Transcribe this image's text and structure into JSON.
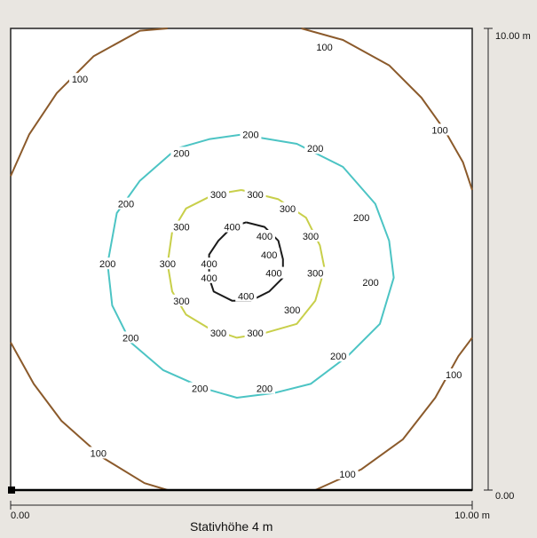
{
  "caption": "Stativhöhe 4 m",
  "axes": {
    "x_min_label": "0.00",
    "x_max_label": "10.00 m",
    "y_min_label": "0.00",
    "y_max_label": "10.00 m"
  },
  "contours": [
    {
      "level": "100",
      "color": "#8b5a2b",
      "segments": [
        [
          [
            0.0,
            6.8
          ],
          [
            0.4,
            7.7
          ],
          [
            1.0,
            8.6
          ],
          [
            1.8,
            9.4
          ],
          [
            2.8,
            9.95
          ],
          [
            3.4,
            10.0
          ]
        ],
        [
          [
            6.3,
            10.0
          ],
          [
            7.2,
            9.75
          ],
          [
            8.2,
            9.2
          ],
          [
            8.9,
            8.5
          ],
          [
            9.4,
            7.8
          ],
          [
            9.8,
            7.1
          ],
          [
            10.0,
            6.5
          ]
        ],
        [
          [
            0.0,
            3.2
          ],
          [
            0.5,
            2.3
          ],
          [
            1.1,
            1.5
          ],
          [
            2.0,
            0.7
          ],
          [
            2.9,
            0.15
          ],
          [
            3.4,
            0.0
          ]
        ],
        [
          [
            6.6,
            0.0
          ],
          [
            7.6,
            0.45
          ],
          [
            8.5,
            1.1
          ],
          [
            9.2,
            2.0
          ],
          [
            9.7,
            2.9
          ],
          [
            10.0,
            3.3
          ]
        ]
      ],
      "labels": [
        [
          1.5,
          8.9
        ],
        [
          9.3,
          7.8
        ],
        [
          1.9,
          0.8
        ],
        [
          7.3,
          0.35
        ],
        [
          9.6,
          2.5
        ],
        [
          6.8,
          9.6
        ]
      ]
    },
    {
      "level": "200",
      "color": "#4cc4c4",
      "points": [
        [
          5.0,
          7.7
        ],
        [
          6.2,
          7.5
        ],
        [
          7.2,
          7.0
        ],
        [
          7.9,
          6.2
        ],
        [
          8.2,
          5.4
        ],
        [
          8.3,
          4.6
        ],
        [
          8.0,
          3.6
        ],
        [
          7.3,
          2.9
        ],
        [
          6.5,
          2.3
        ],
        [
          5.7,
          2.1
        ],
        [
          4.9,
          2.0
        ],
        [
          4.2,
          2.2
        ],
        [
          3.3,
          2.6
        ],
        [
          2.6,
          3.2
        ],
        [
          2.2,
          4.0
        ],
        [
          2.1,
          4.9
        ],
        [
          2.3,
          6.0
        ],
        [
          2.8,
          6.7
        ],
        [
          3.6,
          7.4
        ],
        [
          4.3,
          7.6
        ],
        [
          5.0,
          7.7
        ]
      ],
      "labels": [
        [
          5.2,
          7.7
        ],
        [
          6.6,
          7.4
        ],
        [
          3.7,
          7.3
        ],
        [
          2.5,
          6.2
        ],
        [
          7.6,
          5.9
        ],
        [
          2.1,
          4.9
        ],
        [
          7.8,
          4.5
        ],
        [
          2.6,
          3.3
        ],
        [
          7.1,
          2.9
        ],
        [
          4.1,
          2.2
        ],
        [
          5.5,
          2.2
        ]
      ]
    },
    {
      "level": "300",
      "color": "#c8cf4a",
      "points": [
        [
          5.0,
          6.5
        ],
        [
          5.8,
          6.3
        ],
        [
          6.4,
          5.9
        ],
        [
          6.7,
          5.3
        ],
        [
          6.8,
          4.8
        ],
        [
          6.6,
          4.1
        ],
        [
          6.2,
          3.6
        ],
        [
          5.5,
          3.4
        ],
        [
          4.9,
          3.3
        ],
        [
          4.3,
          3.5
        ],
        [
          3.8,
          3.8
        ],
        [
          3.5,
          4.3
        ],
        [
          3.4,
          4.9
        ],
        [
          3.5,
          5.6
        ],
        [
          3.8,
          6.1
        ],
        [
          4.4,
          6.4
        ],
        [
          5.0,
          6.5
        ]
      ],
      "labels": [
        [
          4.5,
          6.4
        ],
        [
          5.3,
          6.4
        ],
        [
          6.0,
          6.1
        ],
        [
          3.7,
          5.7
        ],
        [
          6.5,
          5.5
        ],
        [
          3.4,
          4.9
        ],
        [
          6.6,
          4.7
        ],
        [
          3.7,
          4.1
        ],
        [
          6.1,
          3.9
        ],
        [
          4.5,
          3.4
        ],
        [
          5.3,
          3.4
        ]
      ]
    },
    {
      "level": "400",
      "color": "#1a1a1a",
      "points": [
        [
          5.1,
          5.8
        ],
        [
          5.5,
          5.7
        ],
        [
          5.8,
          5.4
        ],
        [
          5.9,
          5.0
        ],
        [
          5.9,
          4.6
        ],
        [
          5.6,
          4.3
        ],
        [
          5.2,
          4.1
        ],
        [
          4.8,
          4.1
        ],
        [
          4.4,
          4.3
        ],
        [
          4.3,
          4.6
        ],
        [
          4.3,
          5.1
        ],
        [
          4.5,
          5.4
        ],
        [
          4.8,
          5.7
        ],
        [
          5.1,
          5.8
        ]
      ],
      "labels": [
        [
          4.8,
          5.7
        ],
        [
          5.5,
          5.5
        ],
        [
          5.6,
          5.1
        ],
        [
          4.3,
          4.9
        ],
        [
          5.7,
          4.7
        ],
        [
          4.3,
          4.6
        ],
        [
          5.1,
          4.2
        ]
      ]
    }
  ]
}
